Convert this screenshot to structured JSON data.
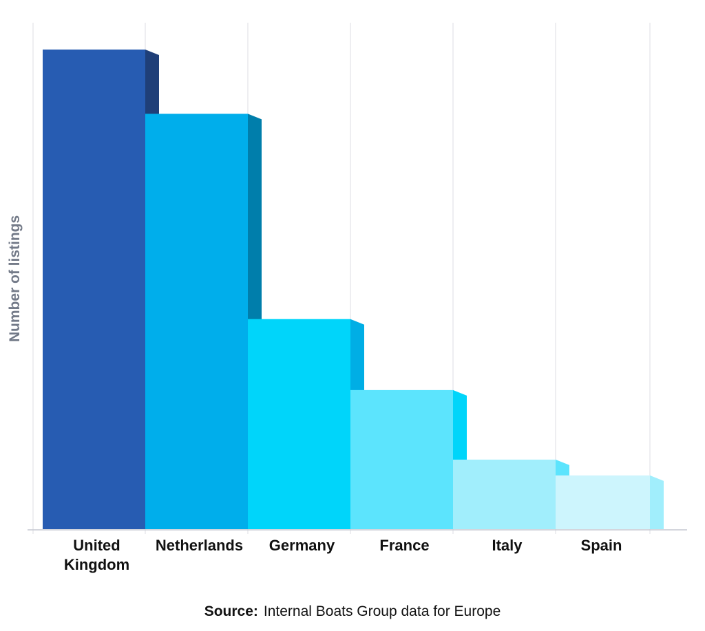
{
  "chart_data": {
    "type": "bar",
    "style": "3d-stepped",
    "categories": [
      "United Kingdom",
      "Netherlands",
      "Germany",
      "France",
      "Italy",
      "Spain"
    ],
    "category_lines": [
      [
        "United",
        "Kingdom"
      ],
      [
        "Netherlands"
      ],
      [
        "Germany"
      ],
      [
        "France"
      ],
      [
        "Italy"
      ],
      [
        "Spain"
      ]
    ],
    "values": [
      100,
      86.6,
      43.8,
      29.0,
      14.5,
      11.2
    ],
    "ylim": [
      0,
      100
    ],
    "ylabel": "Number of listings",
    "xlabel": "",
    "grid": "vertical",
    "colors": {
      "front": [
        "#275cb2",
        "#00aeeb",
        "#00d5fa",
        "#5ce4fd",
        "#a1eefc",
        "#cdf5fd"
      ],
      "side": [
        "#1f3f78",
        "#007eab",
        "#00aee5",
        "#00d5fa",
        "#5ce4fd",
        "#a1eefc"
      ],
      "grid": "#dcdde3",
      "axis": "#c6c9d2"
    }
  },
  "source": {
    "prefix": "Source:",
    "text": "Internal Boats Group data for Europe"
  }
}
